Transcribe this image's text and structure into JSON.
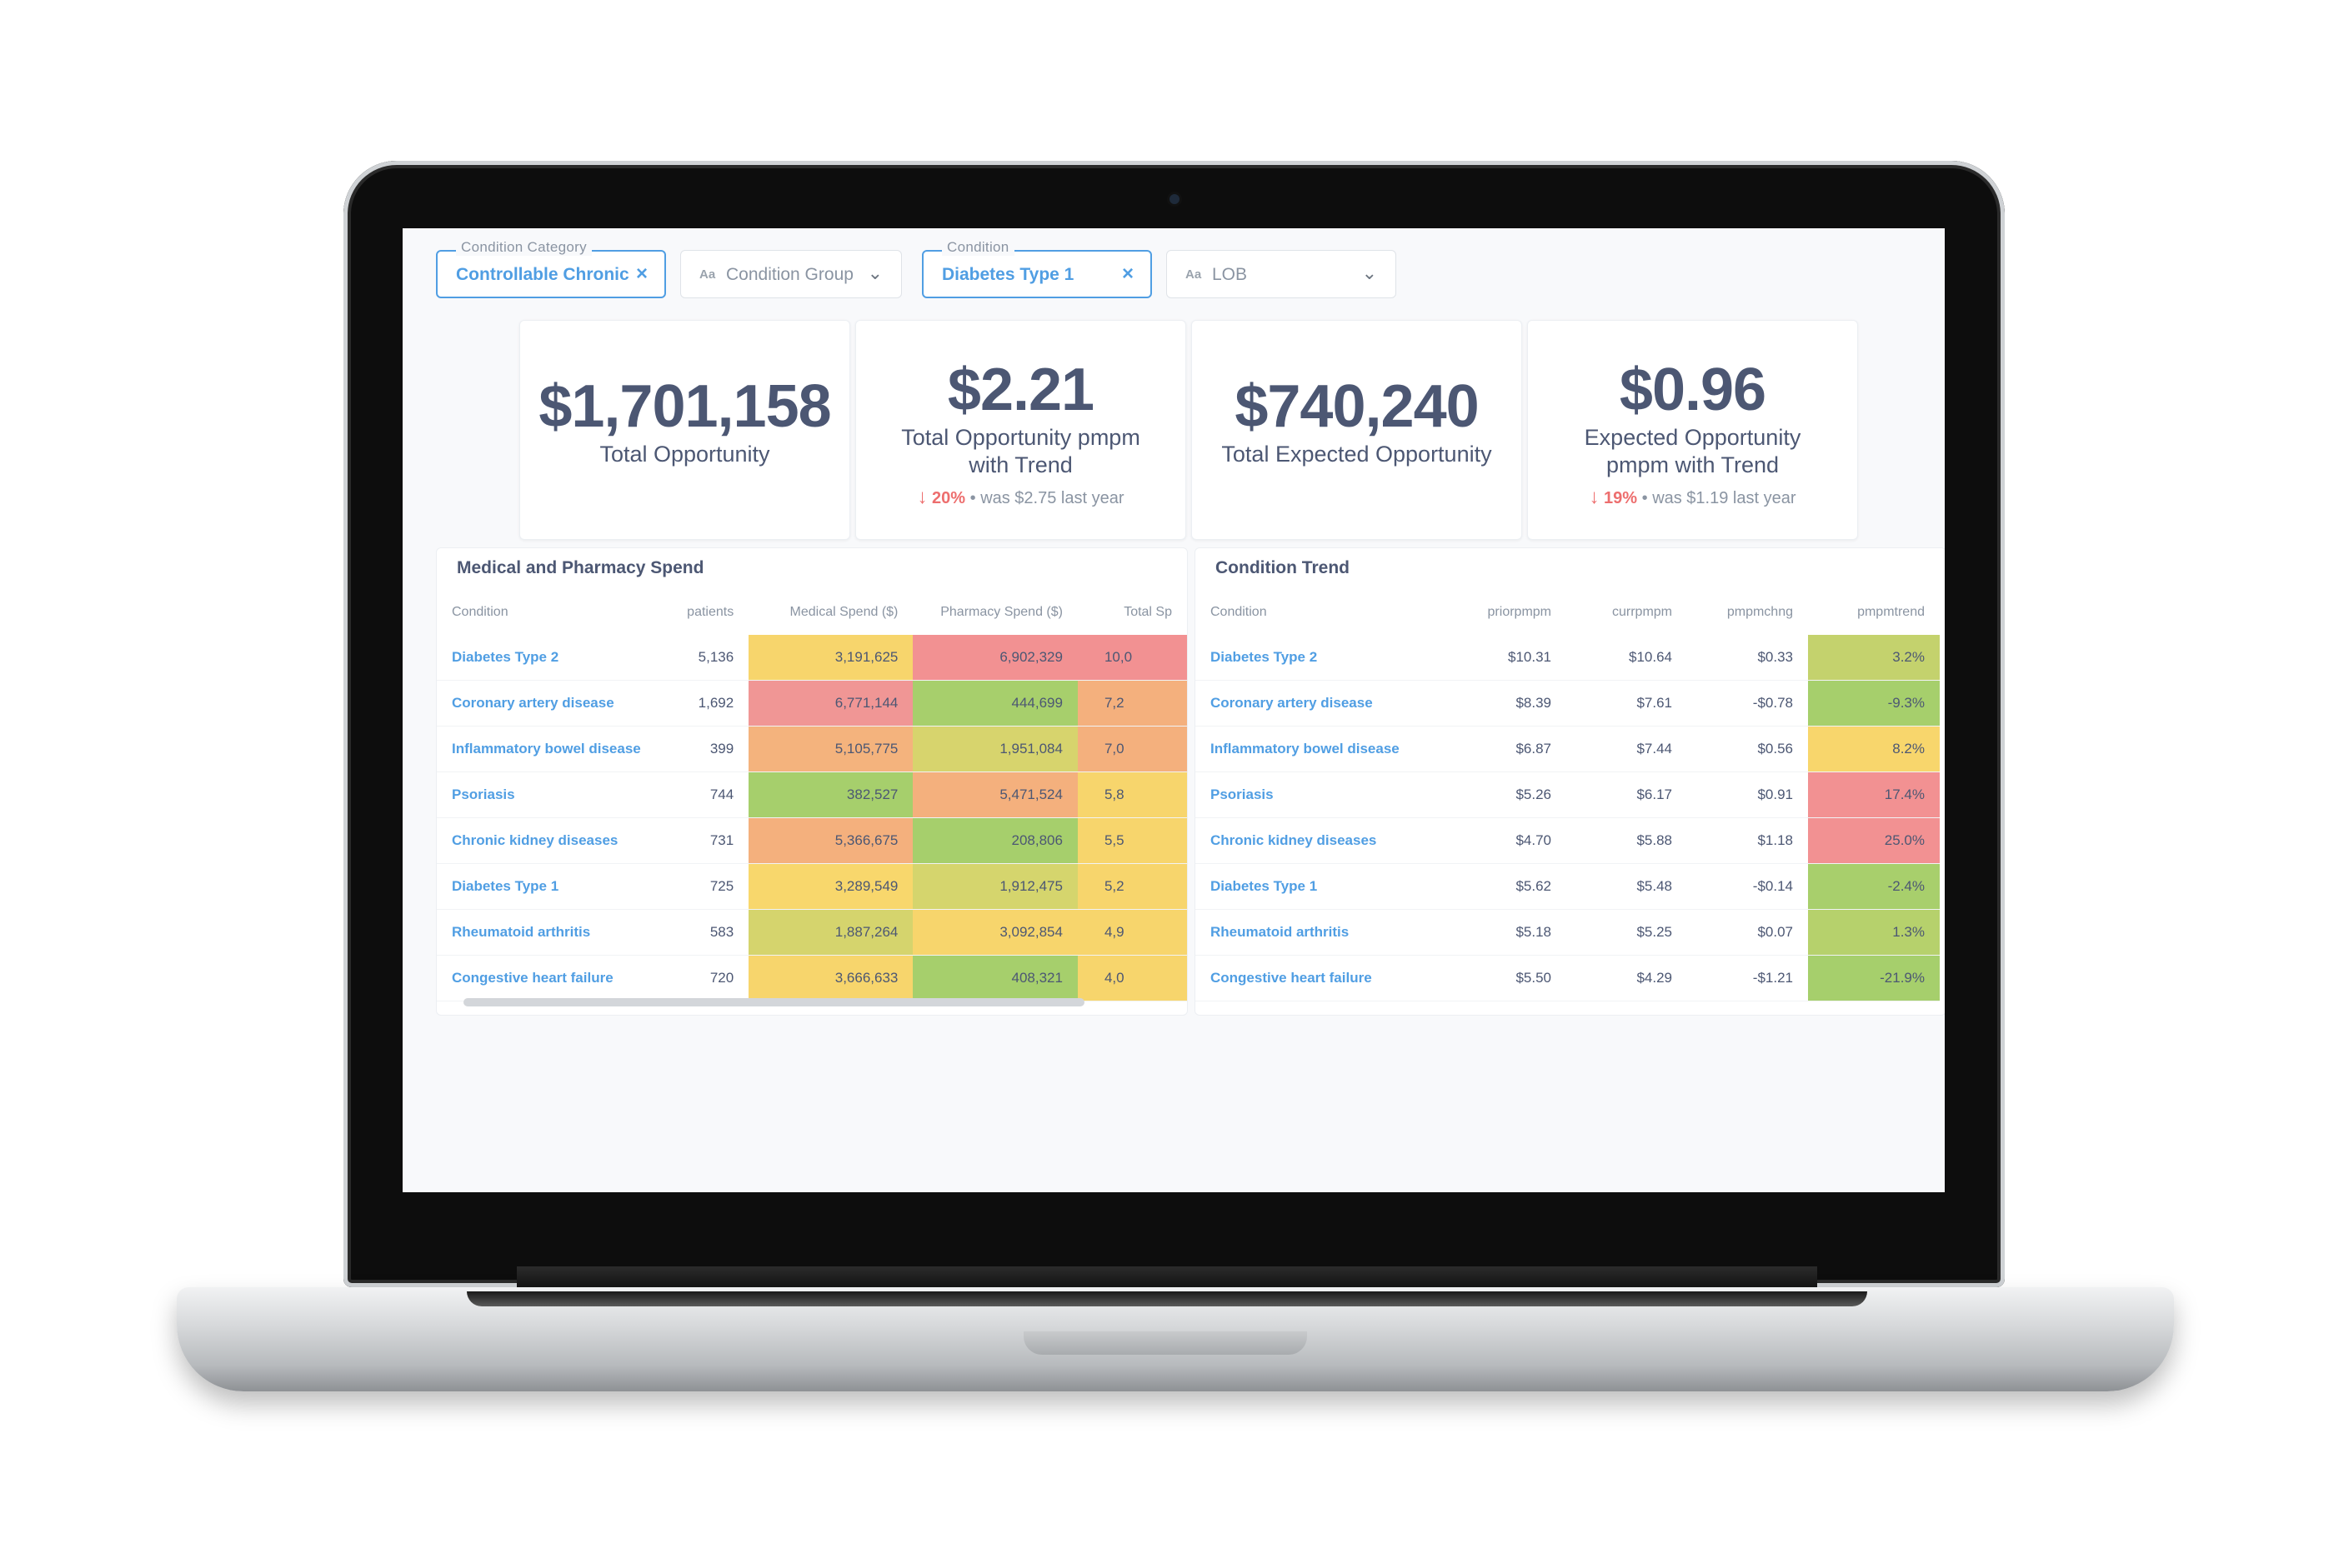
{
  "filters": [
    {
      "label": "Condition Category",
      "value": "Controllable Chronic",
      "active": true
    },
    {
      "placeholder": "Condition Group",
      "active": false
    },
    {
      "label": "Condition",
      "value": "Diabetes Type 1",
      "active": true
    },
    {
      "placeholder": "LOB",
      "active": false
    }
  ],
  "icons": {
    "clear": "×",
    "chevron": "⌄",
    "text_type": "Aa",
    "arrow_down": "↓"
  },
  "cards": [
    {
      "value": "$1,701,158",
      "label": "Total Opportunity"
    },
    {
      "value": "$2.21",
      "label": "Total Opportunity pmpm with Trend",
      "trend_pct": "20%",
      "trend_text": "was $2.75  last year"
    },
    {
      "value": "$740,240",
      "label": "Total Expected Opportunity"
    },
    {
      "value": "$0.96",
      "label": "Expected Opportunity pmpm with Trend",
      "trend_pct": "19%",
      "trend_text": "was $1.19  last year"
    }
  ],
  "spend": {
    "title": "Medical and Pharmacy Spend",
    "columns": [
      "Condition",
      "patients",
      "Medical Spend ($)",
      "Pharmacy Spend ($)",
      "Total Sp"
    ],
    "rows": [
      [
        "Diabetes Type 2",
        "5,136",
        "3,191,625",
        "6,902,329",
        "10,0"
      ],
      [
        "Coronary artery disease",
        "1,692",
        "6,771,144",
        "444,699",
        "7,2"
      ],
      [
        "Inflammatory bowel disease",
        "399",
        "5,105,775",
        "1,951,084",
        "7,0"
      ],
      [
        "Psoriasis",
        "744",
        "382,527",
        "5,471,524",
        "5,8"
      ],
      [
        "Chronic kidney diseases",
        "731",
        "5,366,675",
        "208,806",
        "5,5"
      ],
      [
        "Diabetes Type 1",
        "725",
        "3,289,549",
        "1,912,475",
        "5,2"
      ],
      [
        "Rheumatoid arthritis",
        "583",
        "1,887,264",
        "3,092,854",
        "4,9"
      ],
      [
        "Congestive heart failure",
        "720",
        "3,666,633",
        "408,321",
        "4,0"
      ]
    ],
    "colors": {
      "medical": [
        "#f7d56c",
        "#f09695",
        "#f4b37d",
        "#a6cf6c",
        "#f4b07d",
        "#f8d76c",
        "#d5d46d",
        "#f7d56c"
      ],
      "pharmacy": [
        "#f29192",
        "#a7cf6c",
        "#d7d46d",
        "#f4b07d",
        "#a6cf6c",
        "#d5d56d",
        "#f7d56c",
        "#a6cf6c"
      ],
      "total": [
        "#f29192",
        "#f4b07d",
        "#f4b07d",
        "#f7d56c",
        "#f7d56c",
        "#f7d56c",
        "#f7d56c",
        "#f7d56c"
      ]
    }
  },
  "trend": {
    "title": "Condition Trend",
    "columns": [
      "Condition",
      "priorpmpm",
      "currpmpm",
      "pmpmchng",
      "pmpmtrend"
    ],
    "rows": [
      [
        "Diabetes Type 2",
        "$10.31",
        "$10.64",
        "$0.33",
        "3.2%"
      ],
      [
        "Coronary artery disease",
        "$8.39",
        "$7.61",
        "-$0.78",
        "-9.3%"
      ],
      [
        "Inflammatory bowel disease",
        "$6.87",
        "$7.44",
        "$0.56",
        "8.2%"
      ],
      [
        "Psoriasis",
        "$5.26",
        "$6.17",
        "$0.91",
        "17.4%"
      ],
      [
        "Chronic kidney diseases",
        "$4.70",
        "$5.88",
        "$1.18",
        "25.0%"
      ],
      [
        "Diabetes Type 1",
        "$5.62",
        "$5.48",
        "-$0.14",
        "-2.4%"
      ],
      [
        "Rheumatoid arthritis",
        "$5.18",
        "$5.25",
        "$0.07",
        "1.3%"
      ],
      [
        "Congestive heart failure",
        "$5.50",
        "$4.29",
        "-$1.21",
        "-21.9%"
      ]
    ],
    "colors": {
      "pmpmtrend": [
        "#c4d26d",
        "#a6cf6c",
        "#f8d66c",
        "#f29192",
        "#f29192",
        "#a8cf6c",
        "#b6d16c",
        "#a6cf6c"
      ]
    }
  }
}
